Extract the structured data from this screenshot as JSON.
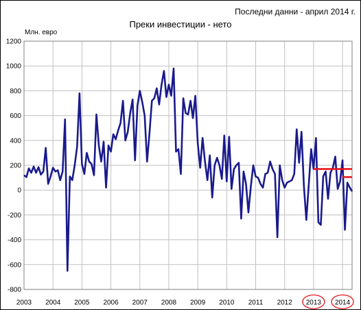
{
  "header": {
    "note": "Последни данни - април 2014 г.",
    "title": "Преки инвестиции - нето",
    "unit": "Млн. евро"
  },
  "chart_data": {
    "type": "line",
    "title": "Преки инвестиции - нето",
    "ylabel": "Млн. евро",
    "ylim": [
      -800,
      1200
    ],
    "yticks": [
      -800,
      -600,
      -400,
      -200,
      0,
      200,
      400,
      600,
      800,
      1000,
      1200
    ],
    "xlim": [
      2003,
      2014.33
    ],
    "year_labels": [
      "2003",
      "2004",
      "2005",
      "2006",
      "2007",
      "2008",
      "2009",
      "2010",
      "2011",
      "2012",
      "2013",
      "2014"
    ],
    "grid": true,
    "colors": {
      "line": "#1a1a8c",
      "reference": "#e8141b",
      "highlight": "#e8141b",
      "grid": "#c0c0c0"
    },
    "series": [
      {
        "values": [
          120,
          105,
          175,
          140,
          190,
          140,
          185,
          125,
          150,
          340,
          50,
          110,
          180,
          150,
          160,
          80,
          150,
          570,
          -650,
          110,
          80,
          200,
          350,
          780,
          210,
          130,
          300,
          230,
          210,
          120,
          610,
          360,
          230,
          390,
          20,
          360,
          310,
          450,
          410,
          480,
          540,
          720,
          400,
          470,
          620,
          730,
          240,
          680,
          800,
          710,
          600,
          230,
          460,
          720,
          740,
          820,
          690,
          850,
          960,
          750,
          850,
          760,
          980,
          310,
          330,
          130,
          740,
          620,
          610,
          720,
          580,
          760,
          380,
          180,
          420,
          230,
          80,
          280,
          -60,
          200,
          260,
          200,
          90,
          440,
          70,
          430,
          10,
          170,
          200,
          220,
          -230,
          150,
          50,
          -180,
          30,
          200,
          110,
          100,
          50,
          20,
          130,
          140,
          230,
          170,
          130,
          -380,
          200,
          80,
          20,
          60,
          70,
          80,
          130,
          490,
          220,
          470,
          30,
          -240,
          40,
          330,
          170,
          420,
          -260,
          -280,
          110,
          150,
          -70,
          140,
          180,
          270,
          10,
          70,
          240,
          -320,
          60,
          20,
          -10
        ]
      }
    ],
    "reference_lines": [
      {
        "start": 2013.0,
        "end": 2014.33,
        "value": 170
      },
      {
        "start": 2014.0,
        "end": 2014.33,
        "value": 105
      }
    ],
    "highlighted_labels": [
      "2013",
      "2014"
    ]
  }
}
